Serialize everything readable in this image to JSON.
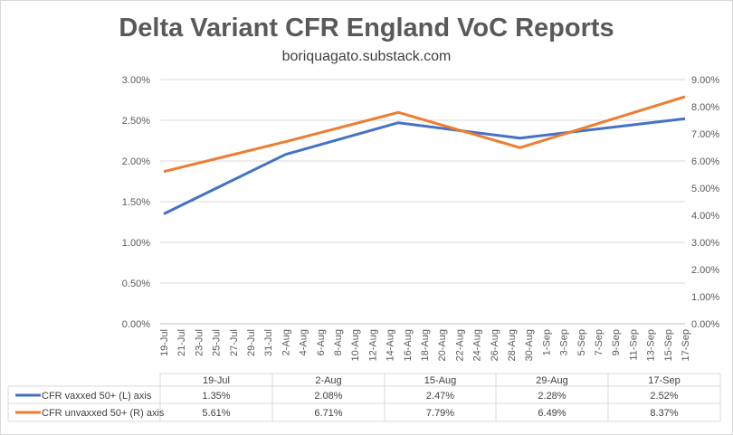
{
  "chart_data": {
    "type": "line",
    "title": "Delta Variant CFR England VoC Reports",
    "subtitle": "boriquagato.substack.com",
    "x_start": "19-Jul",
    "x_days_total": 60,
    "x_tick_labels": [
      "19-Jul",
      "21-Jul",
      "23-Jul",
      "25-Jul",
      "27-Jul",
      "29-Jul",
      "31-Jul",
      "2-Aug",
      "4-Aug",
      "6-Aug",
      "8-Aug",
      "10-Aug",
      "12-Aug",
      "14-Aug",
      "16-Aug",
      "18-Aug",
      "20-Aug",
      "22-Aug",
      "24-Aug",
      "26-Aug",
      "28-Aug",
      "30-Aug",
      "1-Sep",
      "3-Sep",
      "5-Sep",
      "7-Sep",
      "9-Sep",
      "11-Sep",
      "13-Sep",
      "15-Sep",
      "17-Sep"
    ],
    "categories": [
      "19-Jul",
      "2-Aug",
      "15-Aug",
      "29-Aug",
      "17-Sep"
    ],
    "category_day_offsets": [
      0,
      14,
      27,
      41,
      60
    ],
    "y_left": {
      "range": [
        0,
        3
      ],
      "ticks": [
        "0.00%",
        "0.50%",
        "1.00%",
        "1.50%",
        "2.00%",
        "2.50%",
        "3.00%"
      ]
    },
    "y_right": {
      "range": [
        0,
        9
      ],
      "ticks": [
        "0.00%",
        "1.00%",
        "2.00%",
        "3.00%",
        "4.00%",
        "5.00%",
        "6.00%",
        "7.00%",
        "8.00%",
        "9.00%"
      ]
    },
    "grid": true,
    "legend": "data-table-bottom",
    "series": [
      {
        "name": "CFR vaxxed 50+ (L) axis",
        "axis": "left",
        "color": "#4472C4",
        "values": [
          1.35,
          2.08,
          2.47,
          2.28,
          2.52
        ],
        "labels": [
          "1.35%",
          "2.08%",
          "2.47%",
          "2.28%",
          "2.52%"
        ]
      },
      {
        "name": "CFR unvaxxed 50+ (R) axis",
        "axis": "right",
        "color": "#ED7D31",
        "values": [
          5.61,
          6.71,
          7.79,
          6.49,
          8.37
        ],
        "labels": [
          "5.61%",
          "6.71%",
          "7.79%",
          "6.49%",
          "8.37%"
        ]
      }
    ]
  }
}
